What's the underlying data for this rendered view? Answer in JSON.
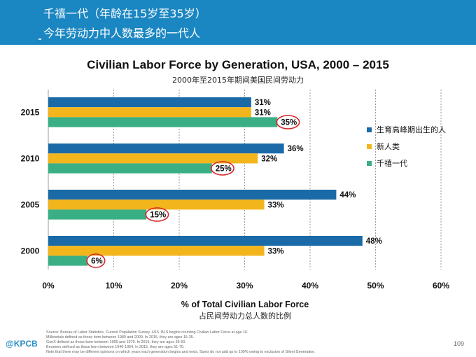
{
  "slide": {
    "header_line1": "千禧一代（年龄在15岁至35岁）",
    "header_line2": "今年劳动力中人数最多的一代人",
    "logo": "@KPCB",
    "page_number": "109",
    "footnotes": [
      "Source: Bureau of Labor Statistics, Current Population Survey, 4/15. BLS begins counting Civilian Labor Force at age 16.",
      "Millennials defined as those born between 1980 and 2000. In 2015, they are ages 15-35.",
      "GenX defined as those born between 1965 and 1979. In 2015, they are ages 36-50.",
      "Boomers defined as those born between 1946-1964. In 2015, they are ages 51-70.",
      "Note that there may be different opinions on which years each generation begins and ends. Sums do not add up to 100% owing to exclusion of Silent Generation."
    ]
  },
  "chart_data": {
    "type": "bar",
    "orientation": "horizontal",
    "title": "Civilian Labor Force by Generation, USA, 2000 – 2015",
    "subtitle": "2000年至2015年期间美国民间劳动力",
    "xlabel": "% of Total Civilian Labor Force",
    "xlabel_cn": "占民间劳动力总人数的比例",
    "ylabel": "",
    "categories": [
      "2015",
      "2010",
      "2005",
      "2000"
    ],
    "xlim": [
      0,
      60
    ],
    "xticks": [
      0,
      10,
      20,
      30,
      40,
      50,
      60
    ],
    "tick_suffix": "%",
    "grid": true,
    "legend_position": "right",
    "series": [
      {
        "name": "生育高峰期出生的人",
        "color": "#1a6aa8",
        "values": [
          31,
          36,
          44,
          48
        ],
        "labels": [
          "31%",
          "36%",
          "44%",
          "48%"
        ],
        "circled": false
      },
      {
        "name": "新人类",
        "color": "#f2b51c",
        "values": [
          31,
          32,
          33,
          33
        ],
        "labels": [
          "31%",
          "32%",
          "33%",
          "33%"
        ],
        "circled": false
      },
      {
        "name": "千禧一代",
        "color": "#3aaf85",
        "values": [
          35,
          25,
          15,
          6
        ],
        "labels": [
          "35%",
          "25%",
          "15%",
          "6%"
        ],
        "circled": true
      }
    ]
  }
}
